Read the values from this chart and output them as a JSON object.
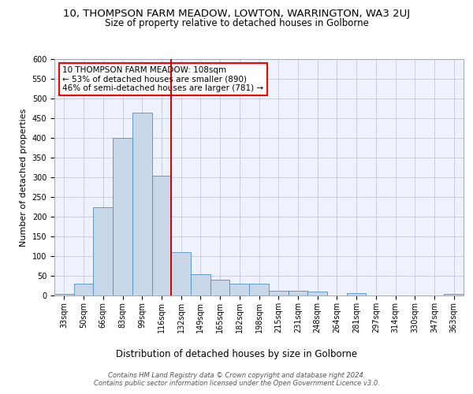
{
  "title_line1": "10, THOMPSON FARM MEADOW, LOWTON, WARRINGTON, WA3 2UJ",
  "title_line2": "Size of property relative to detached houses in Golborne",
  "xlabel": "Distribution of detached houses by size in Golborne",
  "ylabel": "Number of detached properties",
  "footnote1": "Contains HM Land Registry data © Crown copyright and database right 2024.",
  "footnote2": "Contains public sector information licensed under the Open Government Licence v3.0.",
  "annotation_line1": "10 THOMPSON FARM MEADOW: 108sqm",
  "annotation_line2": "← 53% of detached houses are smaller (890)",
  "annotation_line3": "46% of semi-detached houses are larger (781) →",
  "bar_categories": [
    "33sqm",
    "50sqm",
    "66sqm",
    "83sqm",
    "99sqm",
    "116sqm",
    "132sqm",
    "149sqm",
    "165sqm",
    "182sqm",
    "198sqm",
    "215sqm",
    "231sqm",
    "248sqm",
    "264sqm",
    "281sqm",
    "297sqm",
    "314sqm",
    "330sqm",
    "347sqm",
    "363sqm"
  ],
  "bar_values": [
    5,
    30,
    225,
    400,
    465,
    305,
    110,
    55,
    40,
    30,
    30,
    13,
    12,
    10,
    0,
    6,
    0,
    0,
    0,
    0,
    5
  ],
  "bar_color": "#c8d8e8",
  "bar_edge_color": "#5090c0",
  "vline_x": 5.5,
  "vline_color": "#cc0000",
  "ylim": [
    0,
    600
  ],
  "yticks": [
    0,
    50,
    100,
    150,
    200,
    250,
    300,
    350,
    400,
    450,
    500,
    550,
    600
  ],
  "bg_color": "#eef2fc",
  "grid_color": "#c0c8e0",
  "title1_fontsize": 9.5,
  "title2_fontsize": 8.5,
  "ylabel_fontsize": 8,
  "xlabel_fontsize": 8.5,
  "tick_fontsize": 7,
  "annot_fontsize": 7.5,
  "footnote_fontsize": 6
}
